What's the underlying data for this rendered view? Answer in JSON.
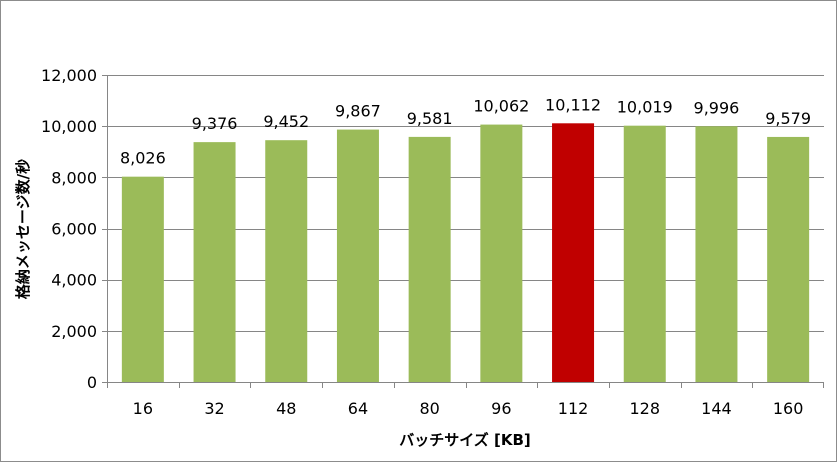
{
  "chart_data": {
    "type": "bar",
    "categories": [
      "16",
      "32",
      "48",
      "64",
      "80",
      "96",
      "112",
      "128",
      "144",
      "160"
    ],
    "values": [
      8026,
      9376,
      9452,
      9867,
      9581,
      10062,
      10112,
      10019,
      9996,
      9579
    ],
    "value_labels": [
      "8,026",
      "9,376",
      "9,452",
      "9,867",
      "9,581",
      "10,062",
      "10,112",
      "10,019",
      "9,996",
      "9,579"
    ],
    "xlabel": "バッチサイズ [KB]",
    "ylabel": "格納メッセージ数/秒",
    "ylim": [
      0,
      12000
    ],
    "yticks": [
      0,
      2000,
      4000,
      6000,
      8000,
      10000,
      12000
    ],
    "ytick_labels": [
      "0",
      "2,000",
      "4,000",
      "6,000",
      "8,000",
      "10,000",
      "12,000"
    ],
    "grid": true,
    "legend": "none",
    "colors": {
      "bar": "#9bbb59",
      "highlight": "#c00000",
      "gridline": "#868686",
      "axis": "#868686"
    },
    "highlight_index": 6
  }
}
